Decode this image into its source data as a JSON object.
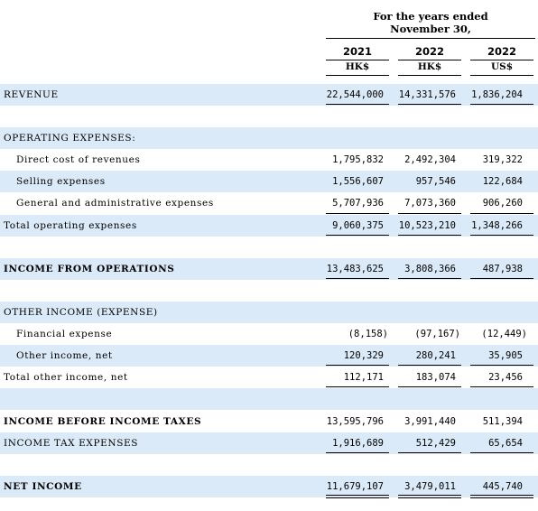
{
  "header": {
    "period_line1": "For the  years ended",
    "period_line2": "November  30,",
    "columns": [
      {
        "year": "2021",
        "currency": "HK$"
      },
      {
        "year": "2022",
        "currency": "HK$"
      },
      {
        "year": "2022",
        "currency": "US$"
      }
    ]
  },
  "rows": {
    "revenue": {
      "label": "REVENUE",
      "v": [
        "22,544,000",
        "14,331,576",
        "1,836,204"
      ]
    },
    "opex_header": {
      "label": "OPERATING EXPENSES:"
    },
    "direct_cost": {
      "label": "Direct cost of revenues",
      "v": [
        "1,795,832",
        "2,492,304",
        "319,322"
      ]
    },
    "selling": {
      "label": "Selling expenses",
      "v": [
        "1,556,607",
        "957,546",
        "122,684"
      ]
    },
    "gna": {
      "label": "General and administrative expenses",
      "v": [
        "5,707,936",
        "7,073,360",
        "906,260"
      ]
    },
    "total_opex": {
      "label": "Total operating expenses",
      "v": [
        "9,060,375",
        "10,523,210",
        "1,348,266"
      ]
    },
    "income_ops": {
      "label": "INCOME FROM OPERATIONS",
      "v": [
        "13,483,625",
        "3,808,366",
        "487,938"
      ]
    },
    "other_header": {
      "label": "OTHER INCOME (EXPENSE)"
    },
    "financial": {
      "label": "Financial expense",
      "v": [
        "(8,158)",
        "(97,167)",
        "(12,449)"
      ]
    },
    "other_net": {
      "label": "Other income, net",
      "v": [
        "120,329",
        "280,241",
        "35,905"
      ]
    },
    "total_other": {
      "label": "Total other income, net",
      "v": [
        "112,171",
        "183,074",
        "23,456"
      ]
    },
    "income_before_tax": {
      "label": "INCOME BEFORE INCOME TAXES",
      "v": [
        "13,595,796",
        "3,991,440",
        "511,394"
      ]
    },
    "tax": {
      "label": "INCOME TAX EXPENSES",
      "v": [
        "1,916,689",
        "512,429",
        "65,654"
      ]
    },
    "net_income": {
      "label": "NET INCOME",
      "v": [
        "11,679,107",
        "3,479,011",
        "445,740"
      ]
    }
  }
}
